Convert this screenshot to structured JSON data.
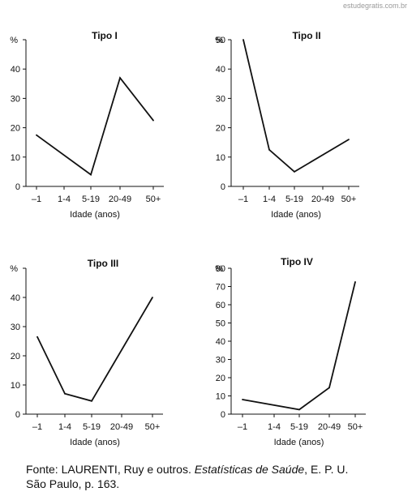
{
  "watermark": "estudegratis.com.br",
  "caption": {
    "line1_prefix": "Fonte: LAURENTI, Ruy e outros. ",
    "line1_title": "Estatísticas de Saúde",
    "line1_suffix": ", E. P. U.",
    "line2": "São Paulo, p. 163."
  },
  "chart_data": [
    {
      "type": "line",
      "title": "Tipo I",
      "ylabel": "%",
      "xlabel": "Idade (anos)",
      "categories": [
        "–1",
        "1-4",
        "5-19",
        "20-49",
        "50+"
      ],
      "x": [
        "–1",
        "5-19",
        "20-49",
        "50+"
      ],
      "values": [
        17.5,
        4,
        37,
        22.5
      ],
      "ylim": [
        0,
        50
      ],
      "yticks": [
        0,
        10,
        20,
        30,
        40,
        50
      ],
      "ytick_labels": [
        "0",
        "10",
        "20",
        "30",
        "40",
        ""
      ]
    },
    {
      "type": "line",
      "title": "Tipo II",
      "ylabel": "%",
      "xlabel": "Idade (anos)",
      "categories": [
        "–1",
        "1-4",
        "5-19",
        "20-49",
        "50+"
      ],
      "x": [
        "–1",
        "1-4",
        "5-19",
        "50+"
      ],
      "values": [
        50,
        12.5,
        5,
        16
      ],
      "ylim": [
        0,
        50
      ],
      "yticks": [
        0,
        10,
        20,
        30,
        40,
        50
      ],
      "ytick_labels": [
        "0",
        "10",
        "20",
        "30",
        "40",
        "50"
      ]
    },
    {
      "type": "line",
      "title": "Tipo III",
      "ylabel": "%",
      "xlabel": "Idade (anos)",
      "categories": [
        "–1",
        "1-4",
        "5-19",
        "20-49",
        "50+"
      ],
      "x": [
        "–1",
        "1-4",
        "5-19",
        "50+"
      ],
      "values": [
        26.5,
        7,
        4.5,
        40
      ],
      "ylim": [
        0,
        50
      ],
      "yticks": [
        0,
        10,
        20,
        30,
        40,
        50
      ],
      "ytick_labels": [
        "0",
        "10",
        "20",
        "30",
        "40",
        ""
      ]
    },
    {
      "type": "line",
      "title": "Tipo IV",
      "ylabel": "%",
      "xlabel": "Idade (anos)",
      "categories": [
        "–1",
        "1-4",
        "5-19",
        "20-49",
        "50+"
      ],
      "x": [
        "–1",
        "5-19",
        "20-49",
        "50+"
      ],
      "values": [
        8,
        2.5,
        14.5,
        72.5
      ],
      "ylim": [
        0,
        80
      ],
      "yticks": [
        0,
        10,
        20,
        30,
        40,
        50,
        60,
        70,
        80
      ],
      "ytick_labels": [
        "0",
        "10",
        "20",
        "30",
        "40",
        "50",
        "60",
        "70",
        "80"
      ]
    }
  ]
}
